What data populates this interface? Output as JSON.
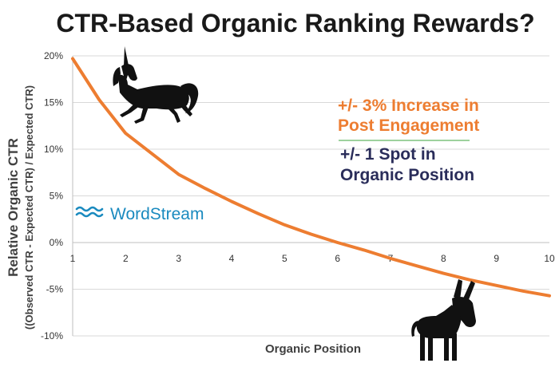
{
  "chart_data": {
    "type": "line",
    "title": "CTR-Based Organic Ranking Rewards?",
    "xlabel": "Organic Position",
    "ylabel": "Relative Organic CTR",
    "ylabel_sub": "((Observed CTR - Expected CTR) / Expected CTR)",
    "x_ticks": [
      "1",
      "2",
      "3",
      "4",
      "5",
      "6",
      "7",
      "8",
      "9",
      "10"
    ],
    "y_ticks": [
      "20%",
      "15%",
      "10%",
      "5%",
      "0%",
      "-5%",
      "-10%"
    ],
    "xlim": [
      1,
      10
    ],
    "ylim": [
      -10,
      20
    ],
    "grid": "horizontal",
    "series": [
      {
        "color": "#ed7d31",
        "x": [
          1,
          1.5,
          2,
          2.5,
          3,
          3.5,
          4,
          4.5,
          5,
          5.5,
          6,
          6.5,
          7,
          7.5,
          8,
          8.5,
          9,
          9.5,
          10
        ],
        "y": [
          19.7,
          15.3,
          11.7,
          9.5,
          7.3,
          5.8,
          4.4,
          3.1,
          1.9,
          0.9,
          0.0,
          -0.8,
          -1.7,
          -2.5,
          -3.3,
          -4.0,
          -4.6,
          -5.2,
          -5.7
        ]
      }
    ],
    "annotations": [
      {
        "lines": [
          "+/- 3% Increase in",
          "Post Engagement"
        ],
        "color": "#ed7d31"
      },
      {
        "lines": [
          "+/- 1 Spot in",
          "Organic Position"
        ],
        "color": "#2a2d5a"
      }
    ],
    "brand": "WordStream",
    "colors": {
      "brand": "#1a8abf",
      "divider": "#7dc27d",
      "axis_text": "#333333",
      "grid": "#d9d9d9"
    },
    "icons": [
      "unicorn-icon",
      "donkey-icon",
      "wordstream-logo-icon"
    ]
  }
}
